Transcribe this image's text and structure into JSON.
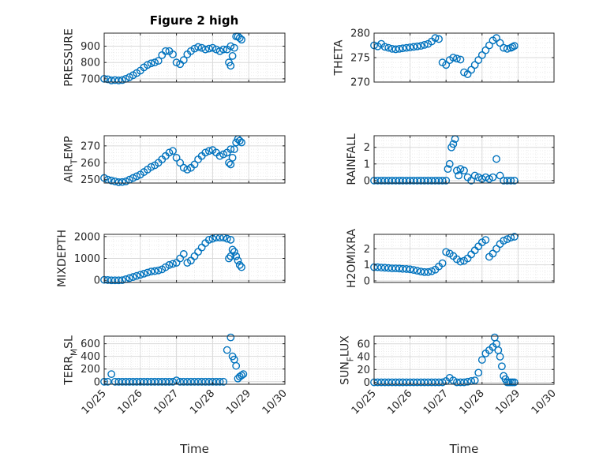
{
  "figure": {
    "title": "Figure 2 high",
    "marker_color": "#0072BD"
  },
  "chart_data": [
    {
      "type": "scatter",
      "title": "Figure 2 high",
      "ylabel": "PRESSURE",
      "xlabel": "",
      "xlim": [
        "2023-10-25",
        "2023-10-30"
      ],
      "ylim": [
        680,
        980
      ],
      "yticks": [
        700,
        800,
        900
      ],
      "xticks": [
        "10/25",
        "10/26",
        "10/27",
        "10/28",
        "10/29",
        "10/30"
      ],
      "show_xticklabels": false,
      "grid": true,
      "x_days": [
        0.0,
        0.1,
        0.2,
        0.3,
        0.4,
        0.5,
        0.6,
        0.7,
        0.8,
        0.9,
        1.0,
        1.1,
        1.2,
        1.3,
        1.4,
        1.5,
        1.6,
        1.7,
        1.8,
        1.9,
        2.0,
        2.1,
        2.2,
        2.3,
        2.4,
        2.5,
        2.6,
        2.7,
        2.8,
        2.9,
        3.0,
        3.1,
        3.2,
        3.3,
        3.4,
        3.5,
        3.45,
        3.5,
        3.55,
        3.6,
        3.65,
        3.7,
        3.75,
        3.8
      ],
      "y": [
        700,
        697,
        690,
        692,
        690,
        692,
        700,
        710,
        722,
        735,
        750,
        770,
        785,
        795,
        800,
        810,
        845,
        870,
        870,
        850,
        800,
        790,
        815,
        850,
        870,
        885,
        895,
        890,
        880,
        885,
        890,
        880,
        870,
        880,
        880,
        900,
        800,
        780,
        840,
        890,
        960,
        960,
        950,
        940
      ]
    },
    {
      "type": "scatter",
      "ylabel": "THETA",
      "xlabel": "",
      "xlim": [
        "2023-10-25",
        "2023-10-30"
      ],
      "ylim": [
        270,
        280
      ],
      "yticks": [
        270,
        275,
        280
      ],
      "xticks": [
        "10/25",
        "10/26",
        "10/27",
        "10/28",
        "10/29",
        "10/30"
      ],
      "show_xticklabels": false,
      "grid": true,
      "x_days": [
        0.0,
        0.1,
        0.2,
        0.3,
        0.4,
        0.5,
        0.6,
        0.7,
        0.8,
        0.9,
        1.0,
        1.1,
        1.2,
        1.3,
        1.4,
        1.5,
        1.6,
        1.7,
        1.8,
        1.9,
        2.0,
        2.1,
        2.2,
        2.3,
        2.4,
        2.5,
        2.6,
        2.7,
        2.8,
        2.9,
        3.0,
        3.1,
        3.2,
        3.3,
        3.4,
        3.5,
        3.6,
        3.7,
        3.8,
        3.85,
        3.9
      ],
      "y": [
        277.5,
        277.3,
        277.8,
        277.2,
        277.0,
        276.8,
        276.7,
        276.8,
        276.9,
        277.0,
        277.1,
        277.2,
        277.3,
        277.4,
        277.6,
        277.8,
        278.3,
        279.0,
        278.8,
        274.0,
        273.5,
        274.5,
        275.0,
        274.8,
        274.6,
        272.0,
        271.6,
        272.5,
        273.5,
        274.5,
        275.5,
        276.5,
        277.5,
        278.5,
        279.0,
        278.0,
        277.0,
        276.8,
        277.0,
        277.2,
        277.4
      ]
    },
    {
      "type": "scatter",
      "ylabel": "AIR_TEMP",
      "xlabel": "",
      "xlim": [
        "2023-10-25",
        "2023-10-30"
      ],
      "ylim": [
        248,
        276
      ],
      "yticks": [
        250,
        260,
        270
      ],
      "xticks": [
        "10/25",
        "10/26",
        "10/27",
        "10/28",
        "10/29",
        "10/30"
      ],
      "show_xticklabels": false,
      "grid": true,
      "x_days": [
        0.0,
        0.1,
        0.2,
        0.3,
        0.4,
        0.5,
        0.6,
        0.7,
        0.8,
        0.9,
        1.0,
        1.1,
        1.2,
        1.3,
        1.4,
        1.5,
        1.6,
        1.7,
        1.8,
        1.9,
        2.0,
        2.1,
        2.2,
        2.3,
        2.4,
        2.5,
        2.6,
        2.7,
        2.8,
        2.9,
        3.0,
        3.1,
        3.2,
        3.3,
        3.4,
        3.5,
        3.45,
        3.5,
        3.55,
        3.6,
        3.65,
        3.7,
        3.75,
        3.8
      ],
      "y": [
        251,
        250,
        249.5,
        249,
        248.5,
        248.6,
        249,
        250,
        251,
        252,
        253,
        254.5,
        256,
        257.5,
        258.5,
        260,
        262,
        264,
        266,
        267,
        263,
        260,
        257,
        256,
        257,
        259,
        262,
        264,
        266,
        267,
        267.5,
        266,
        264,
        265,
        266,
        268,
        260,
        259,
        263,
        268,
        272,
        274,
        273,
        272
      ]
    },
    {
      "type": "scatter",
      "ylabel": "RAINFALL",
      "xlabel": "",
      "xlim": [
        "2023-10-25",
        "2023-10-30"
      ],
      "ylim": [
        -0.15,
        2.7
      ],
      "yticks": [
        0,
        1,
        2
      ],
      "xticks": [
        "10/25",
        "10/26",
        "10/27",
        "10/28",
        "10/29",
        "10/30"
      ],
      "show_xticklabels": false,
      "grid": true,
      "x_days": [
        0.0,
        0.1,
        0.2,
        0.3,
        0.4,
        0.5,
        0.6,
        0.7,
        0.8,
        0.9,
        1.0,
        1.1,
        1.2,
        1.3,
        1.4,
        1.5,
        1.6,
        1.7,
        1.8,
        1.9,
        2.0,
        2.05,
        2.1,
        2.15,
        2.2,
        2.25,
        2.3,
        2.35,
        2.4,
        2.5,
        2.6,
        2.7,
        2.8,
        2.9,
        3.0,
        3.1,
        3.2,
        3.3,
        3.4,
        3.5,
        3.6,
        3.7,
        3.8,
        3.9
      ],
      "y": [
        0,
        0,
        0,
        0,
        0,
        0,
        0,
        0,
        0,
        0,
        0,
        0,
        0,
        0,
        0,
        0,
        0,
        0,
        0,
        0,
        0,
        0.7,
        1.0,
        2.0,
        2.2,
        2.5,
        0.6,
        0.3,
        0.7,
        0.6,
        0.2,
        0.0,
        0.3,
        0.2,
        0.1,
        0.2,
        0.1,
        0.2,
        1.3,
        0.3,
        0.0,
        0.0,
        0.0,
        0.0
      ]
    },
    {
      "type": "scatter",
      "ylabel": "MIXDEPTH",
      "xlabel": "",
      "xlim": [
        "2023-10-25",
        "2023-10-30"
      ],
      "ylim": [
        -100,
        2100
      ],
      "yticks": [
        0,
        1000,
        2000
      ],
      "xticks": [
        "10/25",
        "10/26",
        "10/27",
        "10/28",
        "10/29",
        "10/30"
      ],
      "show_xticklabels": false,
      "grid": true,
      "x_days": [
        0.0,
        0.1,
        0.2,
        0.3,
        0.4,
        0.5,
        0.6,
        0.7,
        0.8,
        0.9,
        1.0,
        1.1,
        1.2,
        1.3,
        1.4,
        1.5,
        1.6,
        1.7,
        1.8,
        1.9,
        2.0,
        2.1,
        2.2,
        2.3,
        2.4,
        2.5,
        2.6,
        2.7,
        2.8,
        2.9,
        3.0,
        3.1,
        3.2,
        3.3,
        3.4,
        3.5,
        3.45,
        3.5,
        3.55,
        3.6,
        3.65,
        3.7,
        3.75,
        3.8
      ],
      "y": [
        20,
        10,
        0,
        0,
        0,
        5,
        50,
        100,
        150,
        200,
        250,
        300,
        350,
        400,
        420,
        450,
        500,
        600,
        700,
        750,
        800,
        1000,
        1200,
        800,
        900,
        1100,
        1300,
        1500,
        1700,
        1850,
        1900,
        1950,
        1950,
        1950,
        1900,
        1850,
        1000,
        1100,
        1400,
        1300,
        1100,
        900,
        700,
        600
      ]
    },
    {
      "type": "scatter",
      "ylabel": "H2OMIXRA",
      "xlabel": "",
      "xlim": [
        "2023-10-25",
        "2023-10-30"
      ],
      "ylim": [
        -0.1,
        2.9
      ],
      "yticks": [
        0,
        1,
        2
      ],
      "xticks": [
        "10/25",
        "10/26",
        "10/27",
        "10/28",
        "10/29",
        "10/30"
      ],
      "show_xticklabels": false,
      "grid": true,
      "x_days": [
        0.0,
        0.1,
        0.2,
        0.3,
        0.4,
        0.5,
        0.6,
        0.7,
        0.8,
        0.9,
        1.0,
        1.1,
        1.2,
        1.3,
        1.4,
        1.5,
        1.6,
        1.7,
        1.8,
        1.9,
        2.0,
        2.1,
        2.2,
        2.3,
        2.4,
        2.5,
        2.6,
        2.7,
        2.8,
        2.9,
        3.0,
        3.1,
        3.2,
        3.3,
        3.4,
        3.5,
        3.6,
        3.7,
        3.8,
        3.9
      ],
      "y": [
        0.85,
        0.85,
        0.83,
        0.82,
        0.8,
        0.78,
        0.78,
        0.77,
        0.75,
        0.74,
        0.72,
        0.68,
        0.63,
        0.58,
        0.55,
        0.55,
        0.6,
        0.7,
        0.9,
        1.1,
        1.8,
        1.7,
        1.55,
        1.35,
        1.2,
        1.25,
        1.4,
        1.65,
        1.9,
        2.15,
        2.4,
        2.55,
        1.5,
        1.7,
        2.0,
        2.3,
        2.5,
        2.6,
        2.7,
        2.75
      ]
    },
    {
      "type": "scatter",
      "ylabel": "TERR_MSL",
      "xlabel": "Time",
      "xlim": [
        "2023-10-25",
        "2023-10-30"
      ],
      "ylim": [
        -40,
        720
      ],
      "yticks": [
        0,
        200,
        400,
        600
      ],
      "xticks": [
        "10/25",
        "10/26",
        "10/27",
        "10/28",
        "10/29",
        "10/30"
      ],
      "show_xticklabels": true,
      "grid": true,
      "x_days": [
        0.0,
        0.1,
        0.2,
        0.3,
        0.4,
        0.5,
        0.6,
        0.7,
        0.8,
        0.9,
        1.0,
        1.1,
        1.2,
        1.3,
        1.4,
        1.5,
        1.6,
        1.7,
        1.8,
        1.9,
        2.0,
        2.1,
        2.2,
        2.3,
        2.4,
        2.5,
        2.6,
        2.7,
        2.8,
        2.9,
        3.0,
        3.1,
        3.2,
        3.3,
        3.4,
        3.5,
        3.55,
        3.6,
        3.65,
        3.7,
        3.75,
        3.8,
        3.85
      ],
      "y": [
        0,
        0,
        120,
        0,
        0,
        0,
        0,
        0,
        0,
        0,
        0,
        0,
        0,
        0,
        0,
        0,
        0,
        0,
        0,
        0,
        20,
        0,
        0,
        0,
        0,
        0,
        0,
        0,
        0,
        0,
        0,
        0,
        0,
        0,
        500,
        700,
        400,
        350,
        250,
        50,
        80,
        100,
        120
      ]
    },
    {
      "type": "scatter",
      "ylabel": "SUN_FLUX",
      "xlabel": "Time",
      "xlim": [
        "2023-10-25",
        "2023-10-30"
      ],
      "ylim": [
        -3,
        72
      ],
      "yticks": [
        0,
        20,
        40,
        60
      ],
      "xticks": [
        "10/25",
        "10/26",
        "10/27",
        "10/28",
        "10/29",
        "10/30"
      ],
      "show_xticklabels": true,
      "grid": true,
      "x_days": [
        0.0,
        0.1,
        0.2,
        0.3,
        0.4,
        0.5,
        0.6,
        0.7,
        0.8,
        0.9,
        1.0,
        1.1,
        1.2,
        1.3,
        1.4,
        1.5,
        1.6,
        1.7,
        1.8,
        1.9,
        2.0,
        2.1,
        2.2,
        2.3,
        2.4,
        2.5,
        2.6,
        2.7,
        2.8,
        2.9,
        3.0,
        3.1,
        3.2,
        3.3,
        3.35,
        3.4,
        3.45,
        3.5,
        3.55,
        3.6,
        3.65,
        3.7,
        3.75,
        3.8,
        3.85,
        3.9
      ],
      "y": [
        0,
        0,
        0,
        0,
        0,
        0,
        0,
        0,
        0,
        0,
        0,
        0,
        0,
        0,
        0,
        0,
        0,
        0,
        0,
        0,
        2,
        7,
        3,
        0,
        0,
        0,
        1,
        2,
        3,
        15,
        35,
        45,
        50,
        55,
        70,
        60,
        50,
        40,
        25,
        10,
        5,
        0,
        0,
        0,
        0,
        0
      ]
    }
  ]
}
